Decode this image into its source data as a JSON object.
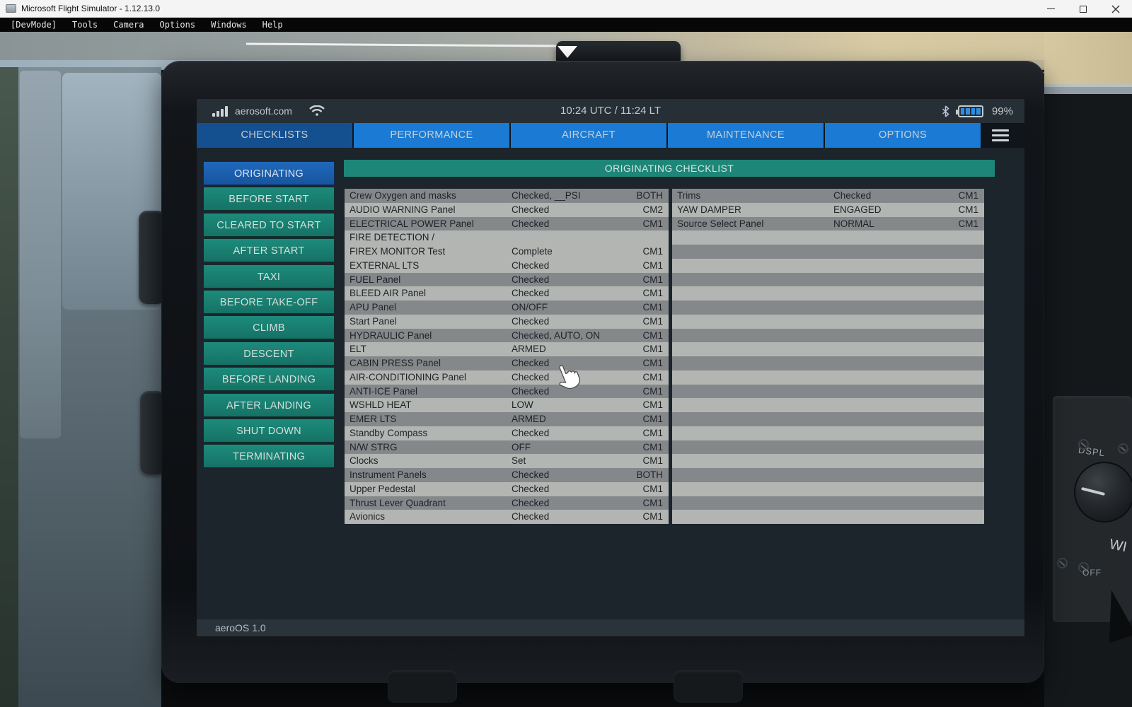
{
  "window": {
    "title": "Microsoft Flight Simulator - 1.12.13.0"
  },
  "menu": {
    "items": [
      "[DevMode]",
      "Tools",
      "Camera",
      "Options",
      "Windows",
      "Help"
    ]
  },
  "tablet": {
    "statusbar": {
      "carrier": "aerosoft.com",
      "time": "10:24 UTC / 11:24 LT",
      "battery_percent": "99%"
    },
    "tabs": [
      {
        "label": "CHECKLISTS",
        "active": true
      },
      {
        "label": "PERFORMANCE",
        "active": false
      },
      {
        "label": "AIRCRAFT",
        "active": false
      },
      {
        "label": "MAINTENANCE",
        "active": false
      },
      {
        "label": "OPTIONS",
        "active": false
      }
    ],
    "sidebar": [
      {
        "label": "ORIGINATING",
        "active": true
      },
      {
        "label": "BEFORE START",
        "active": false
      },
      {
        "label": "CLEARED TO START",
        "active": false
      },
      {
        "label": "AFTER START",
        "active": false
      },
      {
        "label": "TAXI",
        "active": false
      },
      {
        "label": "BEFORE TAKE-OFF",
        "active": false
      },
      {
        "label": "CLIMB",
        "active": false
      },
      {
        "label": "DESCENT",
        "active": false
      },
      {
        "label": "BEFORE LANDING",
        "active": false
      },
      {
        "label": "AFTER LANDING",
        "active": false
      },
      {
        "label": "SHUT DOWN",
        "active": false
      },
      {
        "label": "TERMINATING",
        "active": false
      }
    ],
    "checklist_title": "ORIGINATING CHECKLIST",
    "left_rows": [
      {
        "item": "Crew Oxygen and masks",
        "status": "Checked, __PSI",
        "crew": "BOTH"
      },
      {
        "item": "AUDIO WARNING Panel",
        "status": "Checked",
        "crew": "CM2"
      },
      {
        "item": "ELECTRICAL POWER Panel",
        "status": "Checked",
        "crew": "CM1"
      },
      {
        "item": "FIRE DETECTION /\nFIREX MONITOR Test",
        "status": "Complete",
        "crew": "CM1",
        "tall": true
      },
      {
        "item": "EXTERNAL LTS",
        "status": "Checked",
        "crew": "CM1"
      },
      {
        "item": "FUEL Panel",
        "status": "Checked",
        "crew": "CM1"
      },
      {
        "item": "BLEED AIR Panel",
        "status": "Checked",
        "crew": "CM1"
      },
      {
        "item": "APU Panel",
        "status": "ON/OFF",
        "crew": "CM1"
      },
      {
        "item": "Start Panel",
        "status": "Checked",
        "crew": "CM1"
      },
      {
        "item": "HYDRAULIC Panel",
        "status": "Checked, AUTO, ON",
        "crew": "CM1"
      },
      {
        "item": "ELT",
        "status": "ARMED",
        "crew": "CM1"
      },
      {
        "item": "CABIN PRESS Panel",
        "status": "Checked",
        "crew": "CM1"
      },
      {
        "item": "AIR-CONDITIONING Panel",
        "status": "Checked",
        "crew": "CM1"
      },
      {
        "item": "ANTI-ICE Panel",
        "status": "Checked",
        "crew": "CM1"
      },
      {
        "item": "WSHLD HEAT",
        "status": "LOW",
        "crew": "CM1"
      },
      {
        "item": "EMER LTS",
        "status": "ARMED",
        "crew": "CM1"
      },
      {
        "item": "Standby Compass",
        "status": "Checked",
        "crew": "CM1"
      },
      {
        "item": "N/W STRG",
        "status": "OFF",
        "crew": "CM1"
      },
      {
        "item": "Clocks",
        "status": "Set",
        "crew": "CM1"
      },
      {
        "item": "Instrument Panels",
        "status": "Checked",
        "crew": "BOTH"
      },
      {
        "item": "Upper Pedestal",
        "status": "Checked",
        "crew": "CM1"
      },
      {
        "item": "Thrust Lever Quadrant",
        "status": "Checked",
        "crew": "CM1"
      },
      {
        "item": "Avionics",
        "status": "Checked",
        "crew": "CM1"
      }
    ],
    "right_rows": [
      {
        "item": "Trims",
        "status": "Checked",
        "crew": "CM1"
      },
      {
        "item": "YAW DAMPER",
        "status": "ENGAGED",
        "crew": "CM1"
      },
      {
        "item": "Source Select Panel",
        "status": "NORMAL",
        "crew": "CM1"
      }
    ],
    "right_empty_count": 21,
    "footer": "aeroOS 1.0"
  },
  "cockpit": {
    "dspl_label": "DSPL",
    "off_label": "OFF",
    "wiper_partial": "WI"
  },
  "colors": {
    "tab_active": "#14508f",
    "tab_inactive": "#1b7bd4",
    "sidebar_teal": "#1a8173",
    "sidebar_active": "#1c60b2",
    "header_teal": "#1e8678",
    "row_dark": "#85888b",
    "row_light": "#b3b5b2",
    "battery_fill": "#2f8fe3"
  }
}
